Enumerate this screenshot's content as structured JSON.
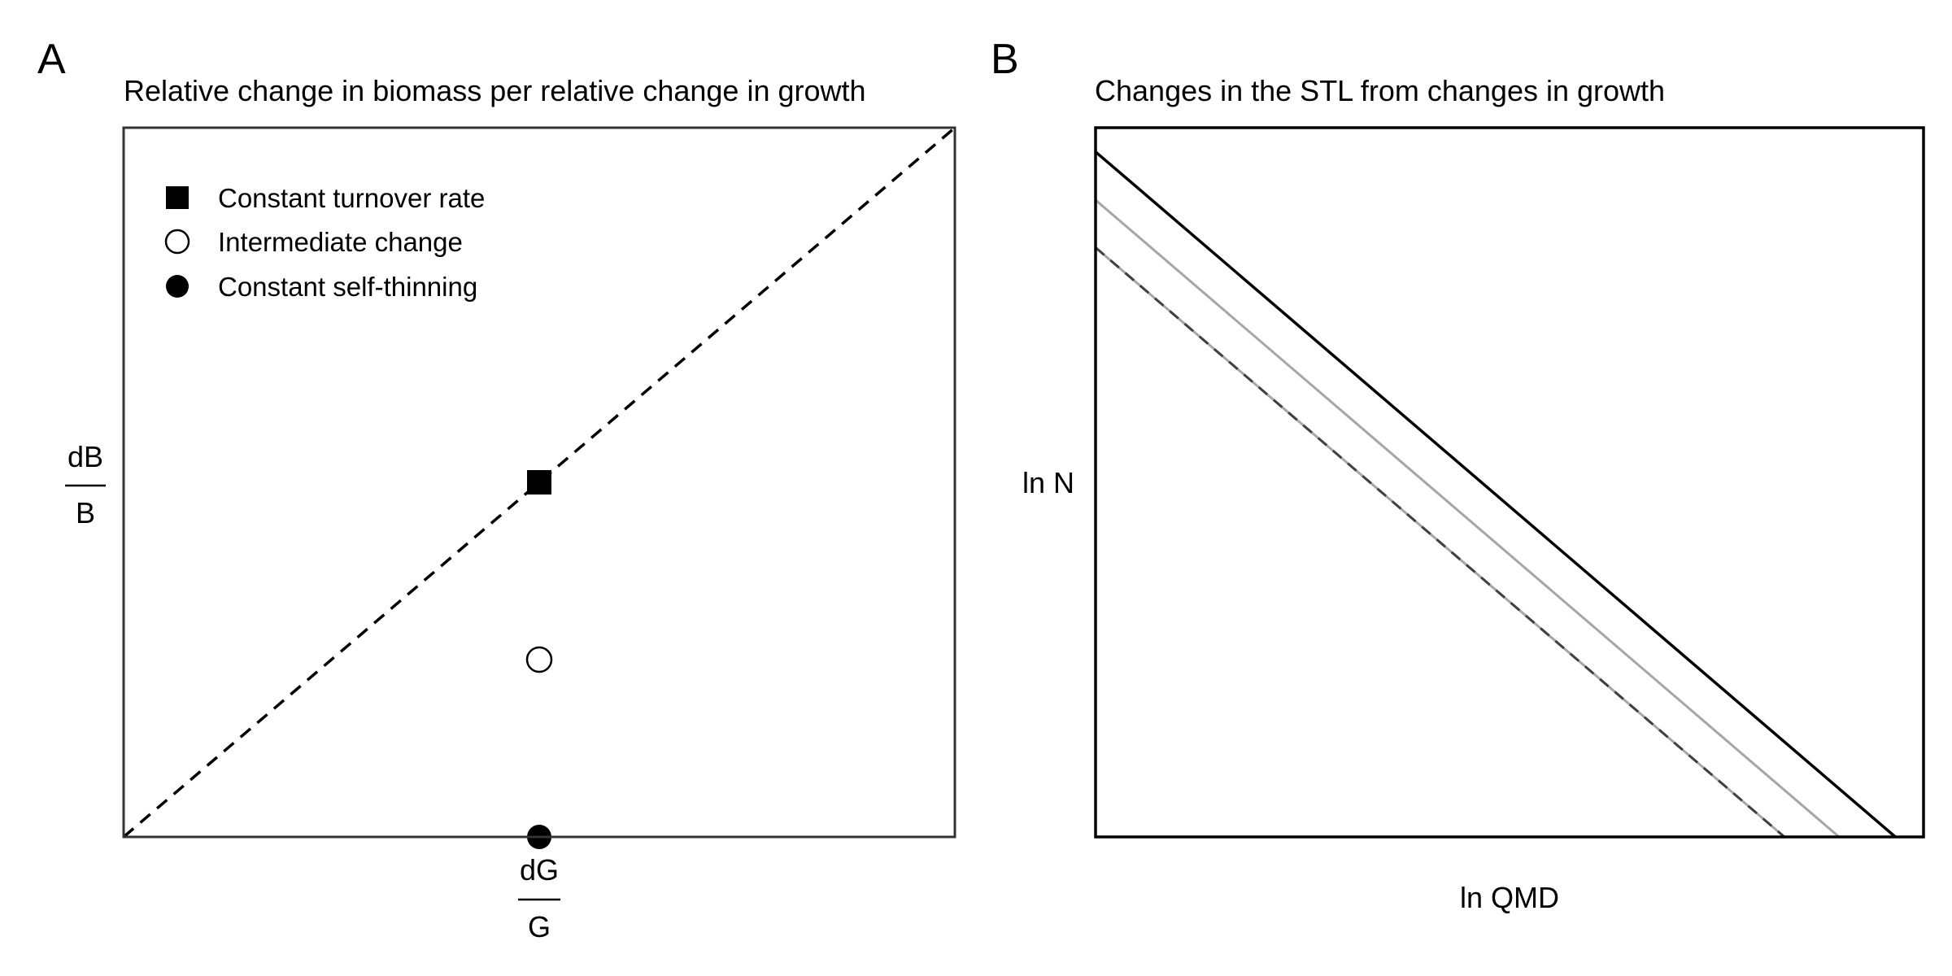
{
  "chart_data": [
    {
      "panel": "A",
      "type": "scatter",
      "title": "Relative change in biomass per relative change in growth",
      "xlabel": {
        "numerator": "dG",
        "denominator": "G"
      },
      "ylabel": {
        "numerator": "dB",
        "denominator": "B"
      },
      "xlim": [
        0,
        1
      ],
      "ylim": [
        0,
        1
      ],
      "grid": false,
      "legend_position": "top-left",
      "reference_line": {
        "style": "dashed",
        "color": "#000000",
        "points": [
          [
            0,
            0
          ],
          [
            1,
            1
          ]
        ]
      },
      "series": [
        {
          "name": "Constant turnover rate",
          "marker": "square",
          "fill": "#000000",
          "x": [
            0.5
          ],
          "y": [
            0.5
          ]
        },
        {
          "name": "Intermediate change",
          "marker": "circle",
          "fill": "#ffffff",
          "x": [
            0.5
          ],
          "y": [
            0.25
          ]
        },
        {
          "name": "Constant self-thinning",
          "marker": "circle",
          "fill": "#000000",
          "x": [
            0.5
          ],
          "y": [
            0.0
          ]
        }
      ]
    },
    {
      "panel": "B",
      "type": "line",
      "title": "Changes in the STL from changes in growth",
      "xlabel": "ln QMD",
      "ylabel": "ln N",
      "xlim": [
        0,
        1
      ],
      "ylim": [
        0,
        1
      ],
      "grid": false,
      "series": [
        {
          "color": "#000000",
          "style": "solid",
          "x": [
            0,
            0.966
          ],
          "y": [
            0.966,
            0
          ]
        },
        {
          "color": "#a6a6a6",
          "style": "solid",
          "x": [
            0,
            0.898
          ],
          "y": [
            0.898,
            0
          ]
        },
        {
          "color": "#a6a6a6",
          "style": "solid",
          "x": [
            0,
            0.832
          ],
          "y": [
            0.831,
            0
          ]
        },
        {
          "color": "#404040",
          "style": "dashed",
          "x": [
            0,
            0.832
          ],
          "y": [
            0.831,
            0
          ]
        }
      ]
    }
  ]
}
